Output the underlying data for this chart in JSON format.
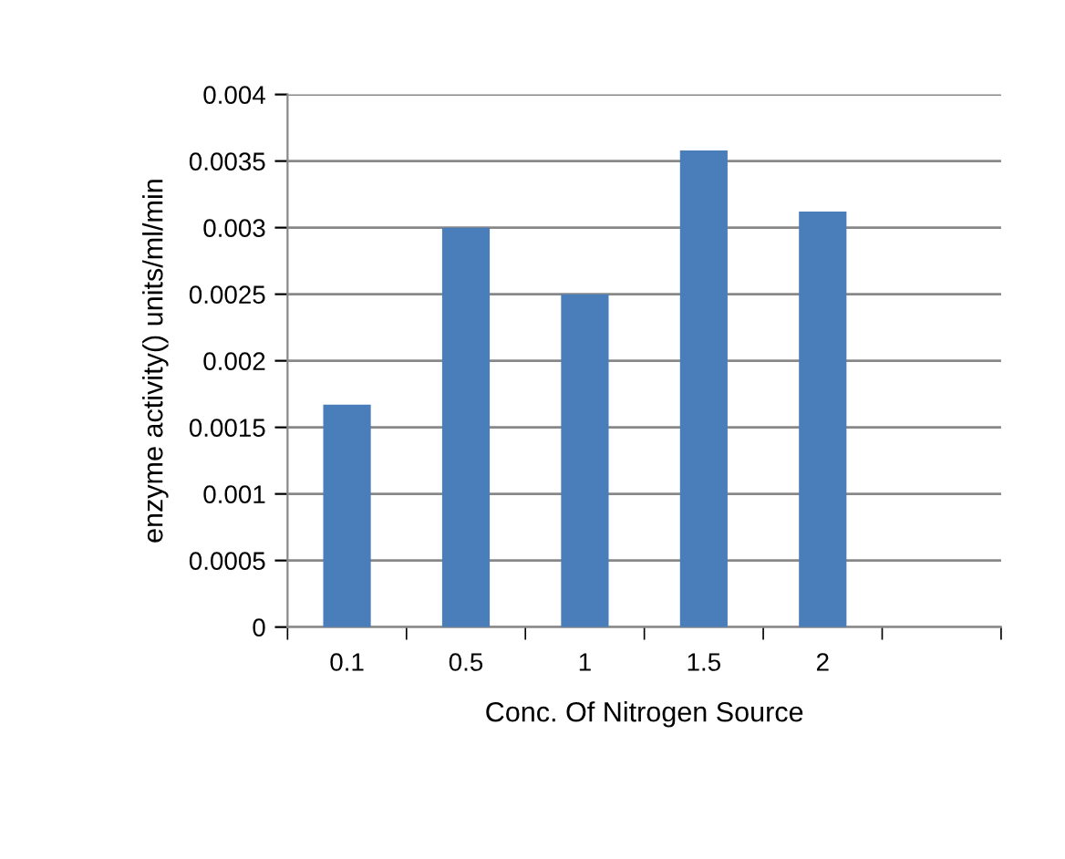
{
  "chart_data": {
    "type": "bar",
    "xlabel": "Conc. Of Nitrogen Source",
    "ylabel": "enzyme activity() units/ml/min",
    "categories": [
      "0.1",
      "0.5",
      "1",
      "1.5",
      "2",
      null
    ],
    "values": [
      0.00167,
      0.003,
      0.0025,
      0.00358,
      0.00312,
      null
    ],
    "color": "#4a7ebb",
    "ylim": [
      0,
      0.004
    ],
    "yticks": [
      {
        "value": 0,
        "label": "0"
      },
      {
        "value": 0.0005,
        "label": "0.0005"
      },
      {
        "value": 0.001,
        "label": "0.001"
      },
      {
        "value": 0.0015,
        "label": "0.0015"
      },
      {
        "value": 0.002,
        "label": "0.002"
      },
      {
        "value": 0.0025,
        "label": "0.0025"
      },
      {
        "value": 0.003,
        "label": "0.003"
      },
      {
        "value": 0.0035,
        "label": "0.0035"
      },
      {
        "value": 0.004,
        "label": "0.004"
      }
    ],
    "grid": "y",
    "legend": false
  }
}
